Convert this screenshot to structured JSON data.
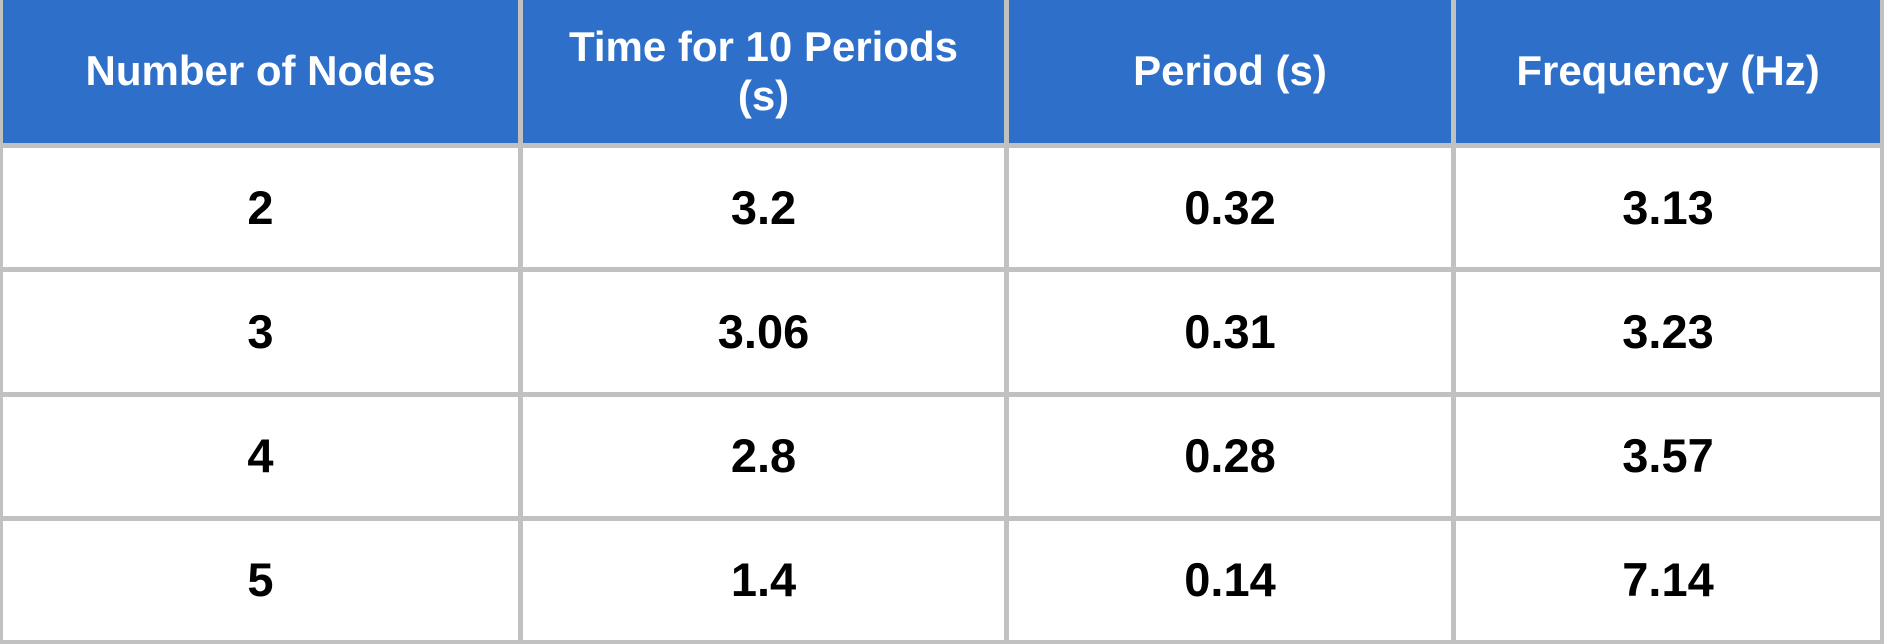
{
  "table": {
    "columns": [
      "Number of Nodes",
      "Time for 10 Periods (s)",
      "Period (s)",
      "Frequency (Hz)"
    ],
    "rows": [
      [
        "2",
        "3.2",
        "0.32",
        "3.13"
      ],
      [
        "3",
        "3.06",
        "0.31",
        "3.23"
      ],
      [
        "4",
        "2.8",
        "0.28",
        "3.57"
      ],
      [
        "5",
        "1.4",
        "0.14",
        "7.14"
      ]
    ]
  },
  "colors": {
    "header_bg": "#2e70c9",
    "header_text": "#ffffff",
    "border": "#c1c1c1",
    "cell_bg": "#ffffff",
    "cell_text": "#000000"
  },
  "chart_data": {
    "type": "table",
    "columns": [
      "Number of Nodes",
      "Time for 10 Periods (s)",
      "Period (s)",
      "Frequency (Hz)"
    ],
    "rows": [
      [
        2,
        3.2,
        0.32,
        3.13
      ],
      [
        3,
        3.06,
        0.31,
        3.23
      ],
      [
        4,
        2.8,
        0.28,
        3.57
      ],
      [
        5,
        1.4,
        0.14,
        7.14
      ]
    ]
  }
}
